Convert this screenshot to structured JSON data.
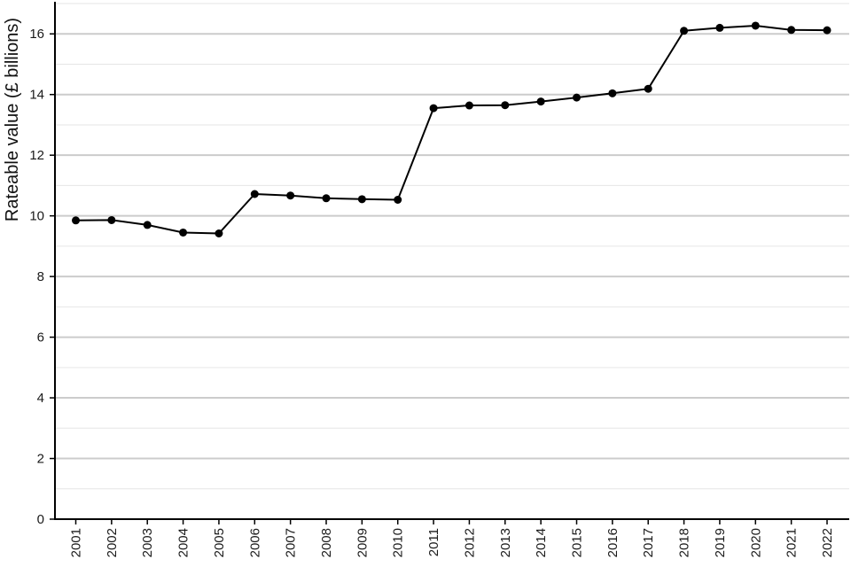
{
  "chart_data": {
    "type": "line",
    "title": "",
    "xlabel": "",
    "ylabel": "Rateable value (£ billions)",
    "categories": [
      "2001",
      "2002",
      "2003",
      "2004",
      "2005",
      "2006",
      "2007",
      "2008",
      "2009",
      "2010",
      "2011",
      "2012",
      "2013",
      "2014",
      "2015",
      "2016",
      "2017",
      "2018",
      "2019",
      "2020",
      "2021",
      "2022"
    ],
    "series": [
      {
        "values": [
          9.85,
          9.86,
          9.7,
          9.45,
          9.42,
          10.72,
          10.67,
          10.58,
          10.55,
          10.53,
          13.55,
          13.64,
          13.65,
          13.77,
          13.9,
          14.04,
          14.19,
          16.1,
          16.2,
          16.27,
          16.13,
          16.12
        ]
      }
    ],
    "yticks": [
      0,
      2,
      4,
      6,
      8,
      10,
      12,
      14,
      16
    ],
    "ylim": [
      0,
      17
    ],
    "grid": true,
    "minor_grid": true,
    "legend": "none",
    "colors": {
      "line": "#000000",
      "marker": "#000000",
      "major_grid": "#cccccc",
      "minor_grid": "#e6e6e6",
      "axis": "#000000"
    }
  }
}
